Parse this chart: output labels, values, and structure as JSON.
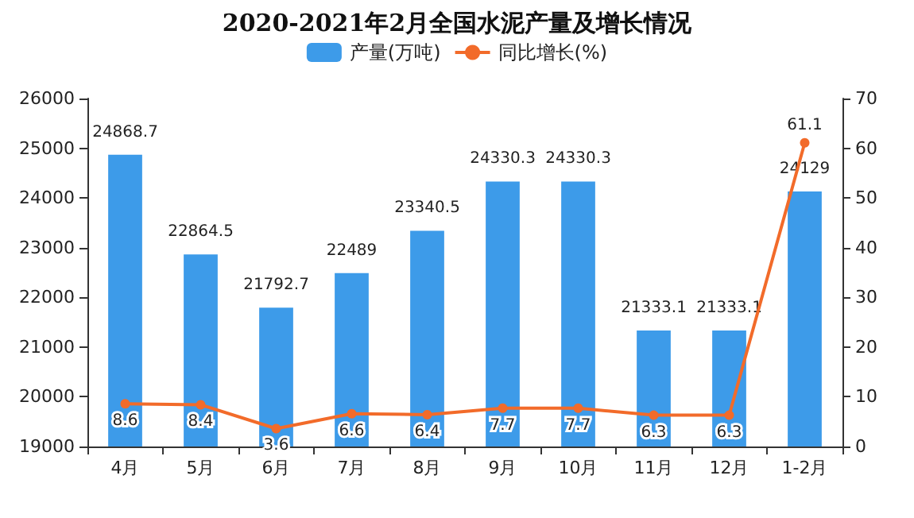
{
  "chart_data": {
    "type": "bar",
    "title": "2020-2021年2月全国水泥产量及增长情况",
    "categories": [
      "4月",
      "5月",
      "6月",
      "7月",
      "8月",
      "9月",
      "10月",
      "11月",
      "12月",
      "1-2月"
    ],
    "series": [
      {
        "name": "产量(万吨)",
        "color": "#3d9be9",
        "values": [
          24868.7,
          22864.5,
          21792.7,
          22489,
          23340.5,
          24330.3,
          24330.3,
          21333.1,
          21333.1,
          24129
        ]
      },
      {
        "name": "同比增长(%)",
        "type": "line",
        "axis": "y2",
        "color": "#f26b2a",
        "values": [
          8.6,
          8.4,
          3.6,
          6.6,
          6.4,
          7.7,
          7.7,
          6.3,
          6.3,
          61.1
        ]
      }
    ],
    "ylim": [
      19000,
      26000
    ],
    "yticks": [
      19000,
      20000,
      21000,
      22000,
      23000,
      24000,
      25000,
      26000
    ],
    "y2lim": [
      0,
      70
    ],
    "y2ticks": [
      0,
      10,
      20,
      30,
      40,
      50,
      60,
      70
    ],
    "data_labels": true,
    "legend": "top",
    "grid": false,
    "marker": "circle"
  }
}
